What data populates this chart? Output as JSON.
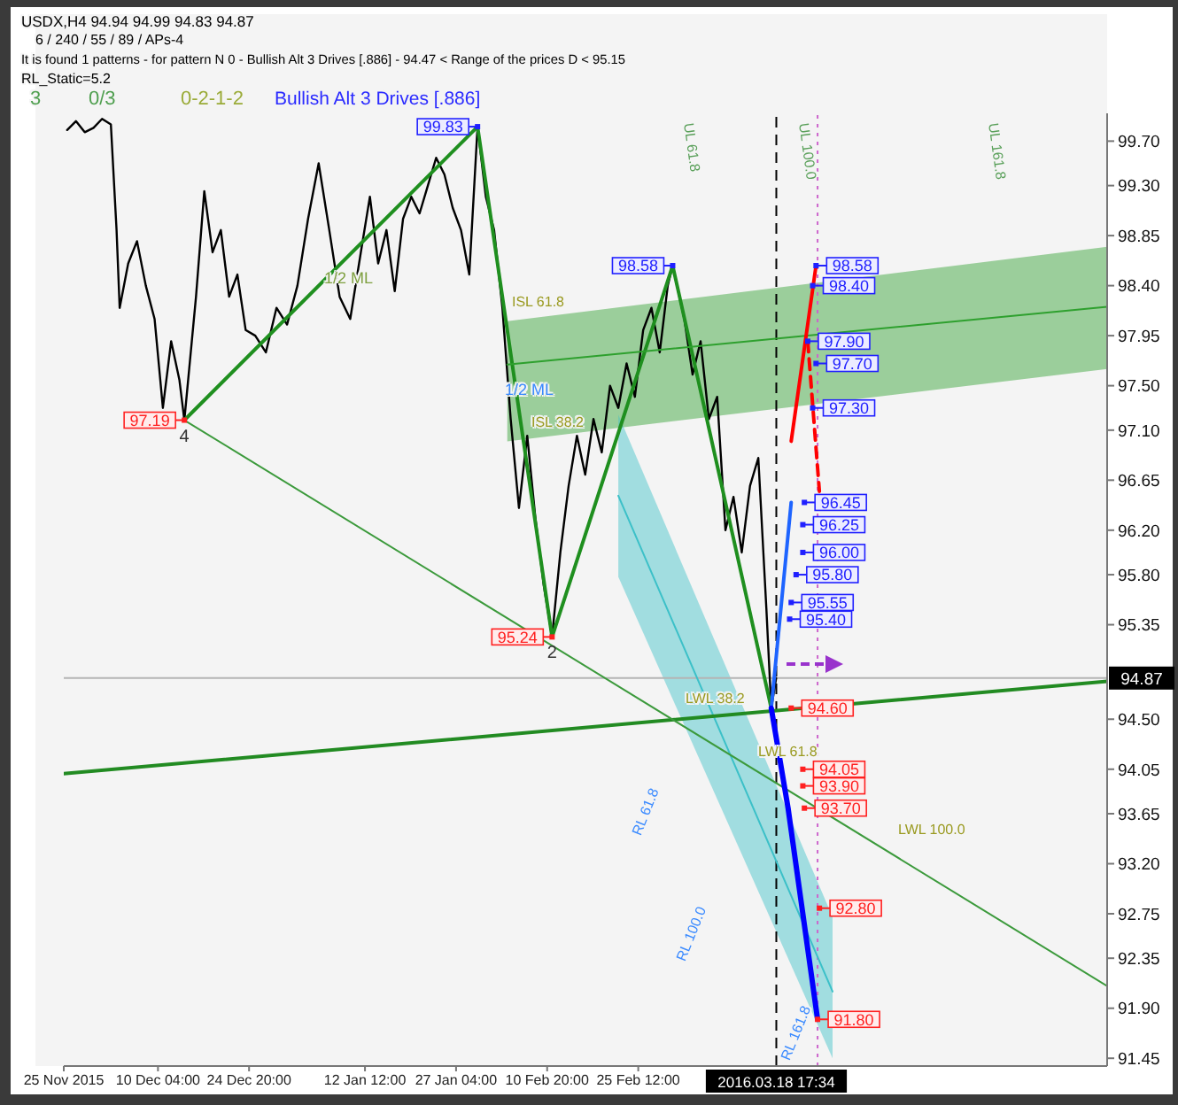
{
  "chart_data": {
    "type": "line",
    "title": "USDX,H4  94.94 94.99 94.83 94.87",
    "subtitle": "6 / 240 / 55 / 89 / APs-4",
    "xlim": [
      "2015-11-25",
      "2016-05-11"
    ],
    "xticks": [
      {
        "value": "2015-11-25",
        "label": "25 Nov 2015"
      },
      {
        "value": "2015-12-10T04:00",
        "label": "10 Dec 04:00"
      },
      {
        "value": "2015-12-24T20:00",
        "label": "24 Dec 20:00"
      },
      {
        "value": "2016-01-12T12:00",
        "label": "12 Jan 12:00"
      },
      {
        "value": "2016-01-27T04:00",
        "label": "27 Jan 04:00"
      },
      {
        "value": "2016-02-10T20:00",
        "label": "10 Feb 20:00"
      },
      {
        "value": "2016-02-25T12:00",
        "label": "25 Feb 12:00"
      }
    ],
    "ylim": [
      91.38,
      99.95
    ],
    "yticks": [
      {
        "value": 99.7,
        "label": "99.70"
      },
      {
        "value": 99.3,
        "label": "99.30"
      },
      98.85,
      {
        "value": 98.4,
        "label": "98.40"
      },
      97.95,
      {
        "value": 97.5,
        "label": "97.50"
      },
      {
        "value": 97.1,
        "label": "97.10"
      },
      96.65,
      {
        "value": 96.2,
        "label": "96.20"
      },
      {
        "value": 95.8,
        "label": "95.80"
      },
      95.35,
      {
        "value": 94.5,
        "label": "94.50"
      },
      94.05,
      93.65,
      {
        "value": 93.2,
        "label": "93.20"
      },
      92.75,
      92.35,
      {
        "value": 91.9,
        "label": "91.90"
      },
      91.45
    ],
    "series": [
      {
        "color": "#000000",
        "x": [
          "2015-11-25T13:00",
          "2015-11-26T23:00",
          "2015-11-28T09:00",
          "2015-11-29T19:00",
          "2015-12-01T04:00",
          "2015-12-02T14:00",
          "2015-12-03T12:00",
          "2015-12-04T00:00",
          "2015-12-05T09:00",
          "2015-12-06T19:00",
          "2015-12-08T05:00",
          "2015-12-09T15:00",
          "2015-12-10T23:00",
          "2015-12-12T07:00",
          "2015-12-13T15:00",
          "2015-12-14T10:00",
          "2015-12-16T07:00",
          "2015-12-17T15:00",
          "2015-12-18T23:00",
          "2015-12-20T07:00",
          "2015-12-21T15:00",
          "2015-12-22T23:00",
          "2015-12-24T07:00",
          "2015-12-25T20:00",
          "2015-12-27T13:00",
          "2015-12-29T06:00",
          "2015-12-30T23:00",
          "2016-01-01T15:00",
          "2016-01-03T08:00",
          "2016-01-05T01:00",
          "2016-01-06T18:00",
          "2016-01-08T10:00",
          "2016-01-10T03:00",
          "2016-01-11T20:00",
          "2016-01-13T07:00",
          "2016-01-14T15:00",
          "2016-01-15T23:00",
          "2016-01-17T07:00",
          "2016-01-18T15:00",
          "2016-01-19T23:00",
          "2016-01-21T07:00",
          "2016-01-22T15:00",
          "2016-01-23T23:00",
          "2016-01-25T07:00",
          "2016-01-26T15:00",
          "2016-01-27T23:00",
          "2016-01-29T07:00",
          "2016-01-30T15:00",
          "2016-01-31T23:00",
          "2016-02-02T07:00",
          "2016-02-03T15:00",
          "2016-02-04T23:00",
          "2016-02-06T07:00",
          "2016-02-07T15:00",
          "2016-02-08T23:00",
          "2016-02-10T07:00",
          "2016-02-11T15:00",
          "2016-02-12T23:00",
          "2016-02-14T07:00",
          "2016-02-15T15:00",
          "2016-02-16T23:00",
          "2016-02-18T07:00",
          "2016-02-19T15:00",
          "2016-02-20T23:00",
          "2016-02-22T07:00",
          "2016-02-23T15:00",
          "2016-02-24T23:00",
          "2016-02-26T07:00",
          "2016-02-27T15:00",
          "2016-02-28T23:00",
          "2016-03-01T06:00",
          "2016-03-02T01:00",
          "2016-03-03T22:00",
          "2016-03-05T06:00",
          "2016-03-06T13:00",
          "2016-03-07T21:00",
          "2016-03-09T05:00",
          "2016-03-10T13:00",
          "2016-03-11T20:00",
          "2016-03-13T04:00",
          "2016-03-14T12:00",
          "2016-03-15T20:00",
          "2016-03-17T03:00",
          "2016-03-17T22:00",
          "2016-03-18T17:00"
        ],
        "values": [
          99.8,
          99.88,
          99.78,
          99.82,
          99.9,
          99.85,
          98.9,
          98.2,
          98.6,
          98.8,
          98.4,
          98.1,
          97.3,
          97.9,
          97.55,
          97.19,
          98.3,
          99.25,
          98.7,
          98.9,
          98.3,
          98.5,
          98.0,
          97.95,
          97.8,
          98.2,
          98.05,
          98.4,
          99.0,
          99.5,
          98.9,
          98.3,
          98.1,
          98.7,
          99.2,
          98.6,
          98.9,
          98.35,
          99.0,
          99.2,
          99.05,
          99.3,
          99.55,
          99.4,
          99.1,
          98.9,
          98.5,
          99.83,
          99.2,
          98.9,
          98.2,
          97.2,
          96.4,
          97.05,
          96.3,
          95.7,
          95.24,
          96.0,
          96.6,
          97.05,
          96.7,
          97.2,
          96.9,
          97.5,
          97.3,
          97.7,
          97.4,
          98.0,
          98.2,
          97.8,
          98.4,
          98.58,
          98.1,
          97.6,
          97.9,
          97.2,
          97.4,
          96.2,
          96.5,
          96.0,
          96.6,
          96.85,
          95.5,
          94.6,
          94.87
        ]
      },
      {
        "color": "#1f8f1f",
        "x": [
          "2015-12-14T10:00",
          "2016-01-30T15:00",
          "2016-02-11T15:00",
          "2016-03-02T01:00",
          "2016-03-17T22:00"
        ],
        "values": [
          97.19,
          99.83,
          95.24,
          98.58,
          94.6
        ]
      },
      {
        "color": "#2ea02e",
        "x": [
          "2016-02-04T10:00",
          "2016-05-11"
        ],
        "values": [
          97.69,
          98.21
        ],
        "lower": [
          97.0,
          97.65
        ],
        "upper": [
          98.08,
          98.75
        ]
      },
      {
        "color": "#3cc0c8",
        "x": [
          "2016-02-22T07:00",
          "2016-03-27T19:00"
        ],
        "values": [
          96.51,
          92.05
        ],
        "lower": [
          95.78,
          91.45
        ],
        "upper": [
          97.24,
          92.72
        ]
      },
      {
        "color": "#228b22",
        "x": [
          "2015-11-25",
          "2016-05-11"
        ],
        "values": [
          94.01,
          94.84
        ]
      },
      {
        "color": "#3c9a3c",
        "x": [
          "2015-12-14T10:00",
          "2016-05-11"
        ],
        "values": [
          97.19,
          92.1
        ]
      },
      {
        "color": "#1e64ff",
        "x": [
          "2016-03-17T22:00",
          "2016-03-21T03:00"
        ],
        "values": [
          94.6,
          96.45
        ]
      },
      {
        "color": "#ff0000",
        "x": [
          "2016-03-21T03:00",
          "2016-03-25T03:00"
        ],
        "values": [
          97.0,
          98.58
        ]
      },
      {
        "color": "#ff0000",
        "line_style": "dashed",
        "x": [
          "2016-03-23T19:00",
          "2016-03-25T16:00"
        ],
        "values": [
          97.9,
          96.55
        ]
      },
      {
        "color": "#0000ff",
        "x": [
          "2016-03-17T22:00",
          "2016-03-20T15:00",
          "2016-03-25T09:00"
        ],
        "values": [
          94.6,
          93.7,
          91.8
        ]
      }
    ],
    "ref_lines": [
      {
        "axis": "y",
        "value": 94.87,
        "label": "94.87",
        "color": "#b4b4b4"
      },
      {
        "axis": "x",
        "value": "2016-03-18T17:34",
        "label": "2016.03.18 17:34",
        "color": "#000000",
        "line_style": "dashed"
      },
      {
        "axis": "x",
        "value": "2016-03-25T09:00",
        "color": "#cc66cc",
        "line_style": "dotted"
      }
    ],
    "annotations": [
      "It is found 1 patterns  -  for pattern N 0 - Bullish Alt 3 Drives [.886] - 94.47 < Range of the prices D < 95.15",
      "RL_Static=5.2",
      "3",
      "0/3",
      "0-2-1-2",
      "Bullish Alt 3 Drives [.886]",
      "1/2 ML",
      "ISL 61.8",
      "1/2 ML",
      "ISL 38.2",
      "LWL 38.2",
      "LWL 61.8",
      "LWL 100.0",
      "RL 61.8",
      "RL 100.0",
      "RL 161.8",
      "UL 61.8",
      "UL 100.0",
      "UL 161.8",
      {
        "text": "99.83",
        "x": "2016-01-30T15:00",
        "y": 99.83
      },
      {
        "text": "97.19",
        "x": "2015-12-14T10:00",
        "y": 97.19
      },
      {
        "text": "4",
        "x": "2015-12-14T10:00",
        "y": 97.19
      },
      {
        "text": "95.24",
        "x": "2016-02-11T15:00",
        "y": 95.24
      },
      {
        "text": "2",
        "x": "2016-02-11T15:00",
        "y": 95.24
      },
      {
        "text": "98.58",
        "x": "2016-03-02T01:00",
        "y": 98.58
      },
      {
        "text": "98.58",
        "x": "2016-03-25T03:00",
        "y": 98.58
      },
      {
        "text": "98.40",
        "x": "2016-03-24T14:00",
        "y": 98.4
      },
      {
        "text": "97.90",
        "x": "2016-03-23T19:00",
        "y": 97.9
      },
      {
        "text": "97.70",
        "x": "2016-03-25T03:00",
        "y": 97.7
      },
      {
        "text": "97.30",
        "x": "2016-03-24T14:00",
        "y": 97.3
      },
      {
        "text": "96.45",
        "x": "2016-03-23T06:00",
        "y": 96.45
      },
      {
        "text": "96.25",
        "x": "2016-03-23T00:00",
        "y": 96.25
      },
      {
        "text": "96.00",
        "x": "2016-03-23T00:00",
        "y": 96.0
      },
      {
        "text": "95.80",
        "x": "2016-03-21T22:00",
        "y": 95.8
      },
      {
        "text": "95.55",
        "x": "2016-03-21T03:00",
        "y": 95.55
      },
      {
        "text": "95.40",
        "x": "2016-03-20T21:00",
        "y": 95.4
      },
      {
        "text": "94.60",
        "x": "2016-03-21T03:00",
        "y": 94.6
      },
      {
        "text": "94.05",
        "x": "2016-03-23T00:00",
        "y": 94.05
      },
      {
        "text": "93.90",
        "x": "2016-03-23T00:00",
        "y": 93.9
      },
      {
        "text": "93.70",
        "x": "2016-03-23T06:00",
        "y": 93.7
      },
      {
        "text": "92.80",
        "x": "2016-03-25T16:00",
        "y": 92.8
      },
      {
        "text": "91.80",
        "x": "2016-03-25T09:00",
        "y": 91.8
      }
    ]
  }
}
